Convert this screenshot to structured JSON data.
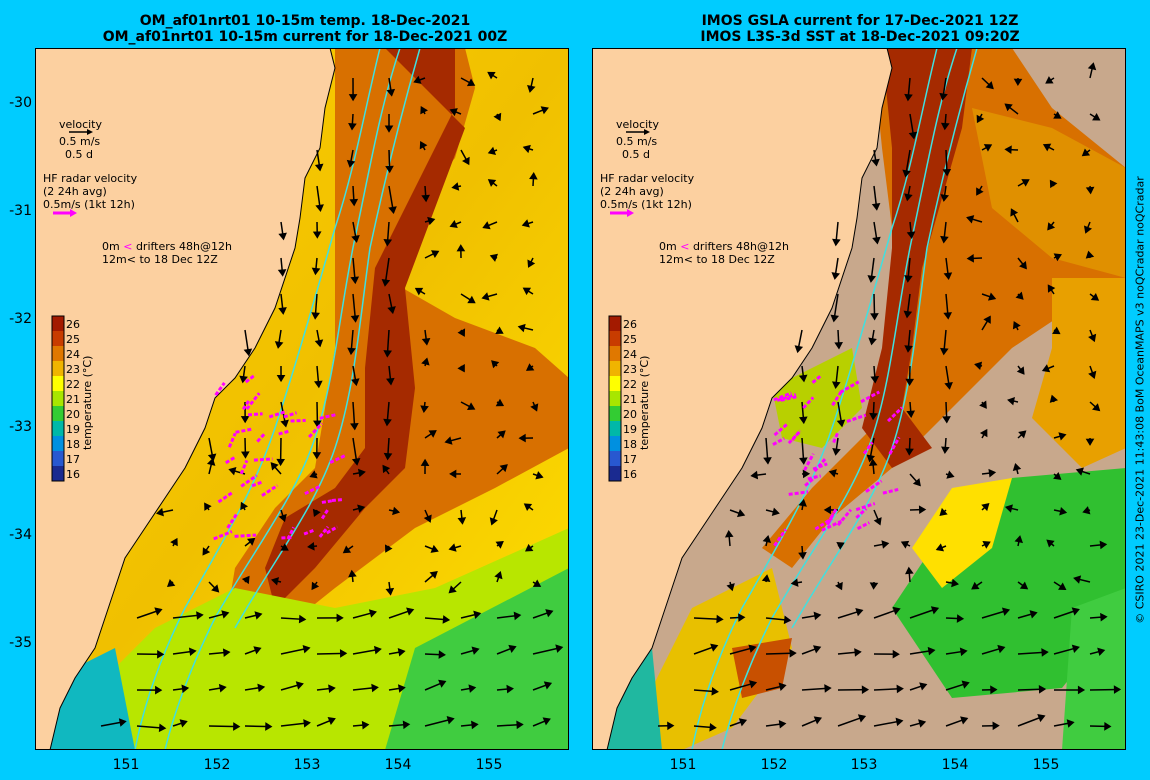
{
  "left_panel": {
    "title_line1": "OM_af01nrt01 10-15m temp. 18-Dec-2021",
    "title_line2": "OM_af01nrt01 10-15m current for 18-Dec-2021 00Z"
  },
  "right_panel": {
    "title_line1": "IMOS GSLA current for 17-Dec-2021 12Z",
    "title_line2": "IMOS L3S-3d SST at 18-Dec-2021 09:20Z"
  },
  "legend": {
    "velocity_title": "velocity",
    "velocity_scale": "0.5 m/s",
    "velocity_days": "0.5 d",
    "hf_title": "HF radar velocity",
    "hf_avg": "(2 24h avg)",
    "hf_scale": "0.5m/s (1kt 12h)",
    "drifter_line1_depth": "0m",
    "drifter_line1_text": "drifters 48h@12h",
    "drifter_line2_depth": "12m",
    "drifter_line2_text": "to 18 Dec 12Z"
  },
  "colorbar": {
    "label": "temperature (°C)",
    "ticks": [
      "26",
      "25",
      "24",
      "23",
      "22",
      "21",
      "20",
      "19",
      "18",
      "17",
      "16"
    ],
    "colors": [
      "#a31a00",
      "#c83c00",
      "#e07800",
      "#f0b400",
      "#ffff00",
      "#a8e600",
      "#33cc33",
      "#00b8a8",
      "#0090e0",
      "#2858d0",
      "#1a2a90"
    ]
  },
  "axes": {
    "y_ticks": [
      "-30",
      "-31",
      "-32",
      "-33",
      "-34",
      "-35"
    ],
    "x_ticks": [
      "151",
      "152",
      "153",
      "154",
      "155"
    ]
  },
  "credit": "© CSIRO 2021   23-Dec-2021 11:43:08 BoM OceanMAPS v3 noQCradar noQCradar",
  "colors": {
    "background": "#00ccff",
    "land": "#fcd0a0",
    "no_data": "#c8a88c",
    "contour": "#40e0e0",
    "drifter": "#ff00ff",
    "arrow": "#000000"
  }
}
